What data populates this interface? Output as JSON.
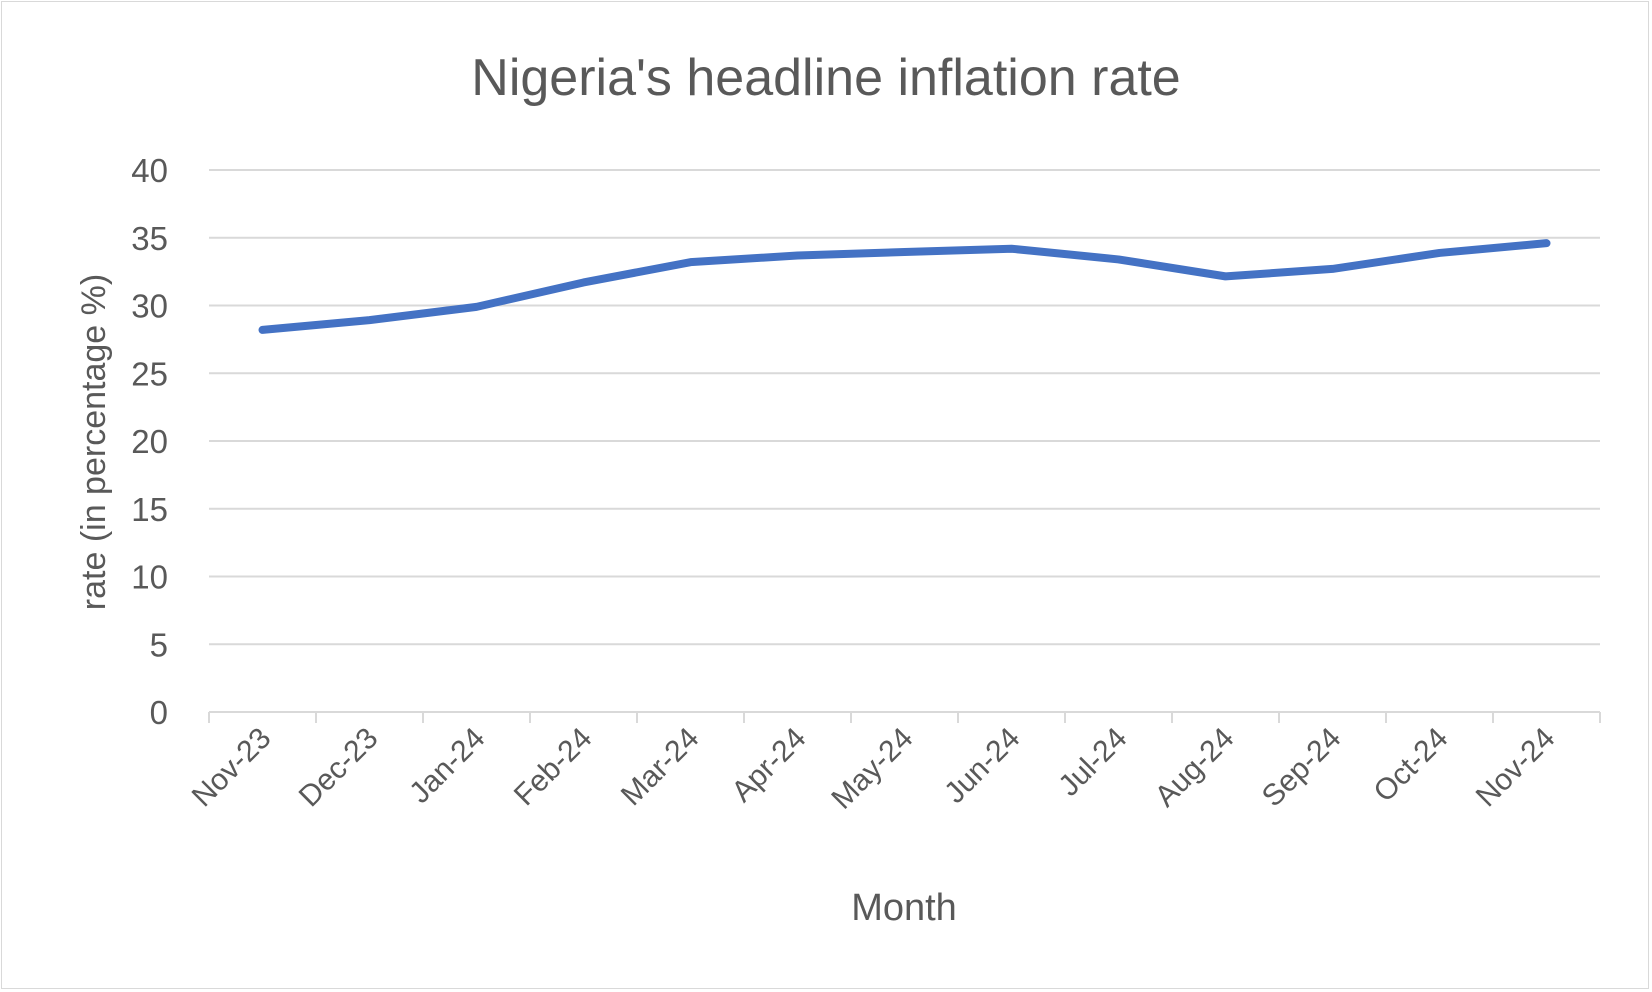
{
  "chart_data": {
    "type": "line",
    "title": "Nigeria's headline inflation rate",
    "xlabel": "Month",
    "ylabel": "rate (in percentage %)",
    "categories": [
      "Nov-23",
      "Dec-23",
      "Jan-24",
      "Feb-24",
      "Mar-24",
      "Apr-24",
      "May-24",
      "Jun-24",
      "Jul-24",
      "Aug-24",
      "Sep-24",
      "Oct-24",
      "Nov-24"
    ],
    "series": [
      {
        "values": [
          28.2,
          28.92,
          29.9,
          31.7,
          33.2,
          33.69,
          33.95,
          34.19,
          33.4,
          32.15,
          32.7,
          33.88,
          34.6
        ],
        "color": "#4472c4"
      }
    ],
    "ylim": [
      0,
      40
    ],
    "yticks": [
      0,
      5,
      10,
      15,
      20,
      25,
      30,
      35,
      40
    ],
    "grid": true,
    "legend": "none"
  }
}
